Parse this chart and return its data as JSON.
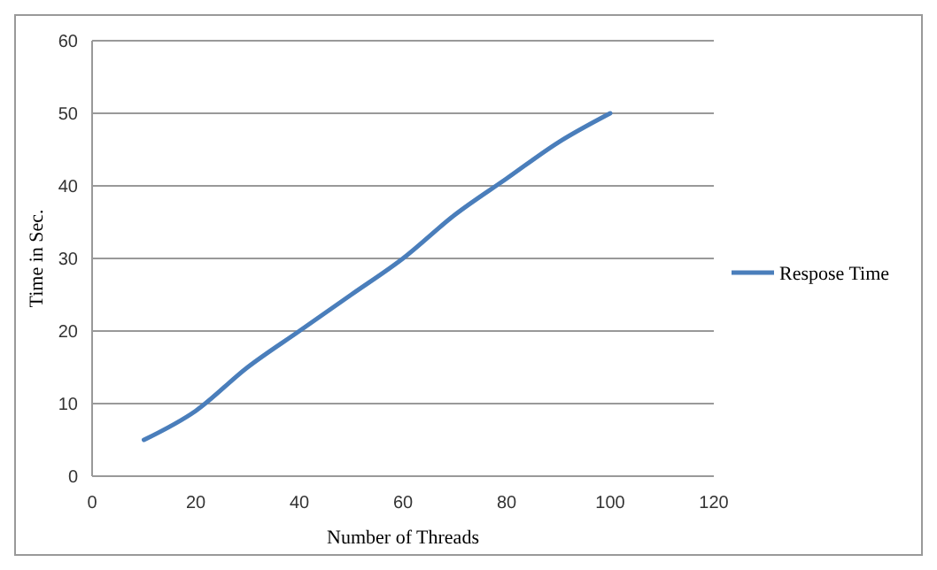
{
  "chart_data": {
    "type": "line",
    "xlabel": "Number of Threads",
    "ylabel": "Time in Sec.",
    "x": [
      10,
      20,
      30,
      40,
      50,
      60,
      70,
      80,
      90,
      100
    ],
    "series": [
      {
        "name": "Respose Time",
        "color": "#4a7ebb",
        "values": [
          5,
          9,
          15,
          20,
          25,
          30,
          36,
          41,
          46,
          50
        ]
      }
    ],
    "xlim": [
      0,
      120
    ],
    "xticks": [
      0,
      20,
      40,
      60,
      80,
      100,
      120
    ],
    "ylim": [
      0,
      60
    ],
    "yticks": [
      0,
      10,
      20,
      30,
      40,
      50,
      60
    ],
    "grid": "y",
    "legend": "right",
    "marker": "none",
    "line_style": "solid"
  }
}
